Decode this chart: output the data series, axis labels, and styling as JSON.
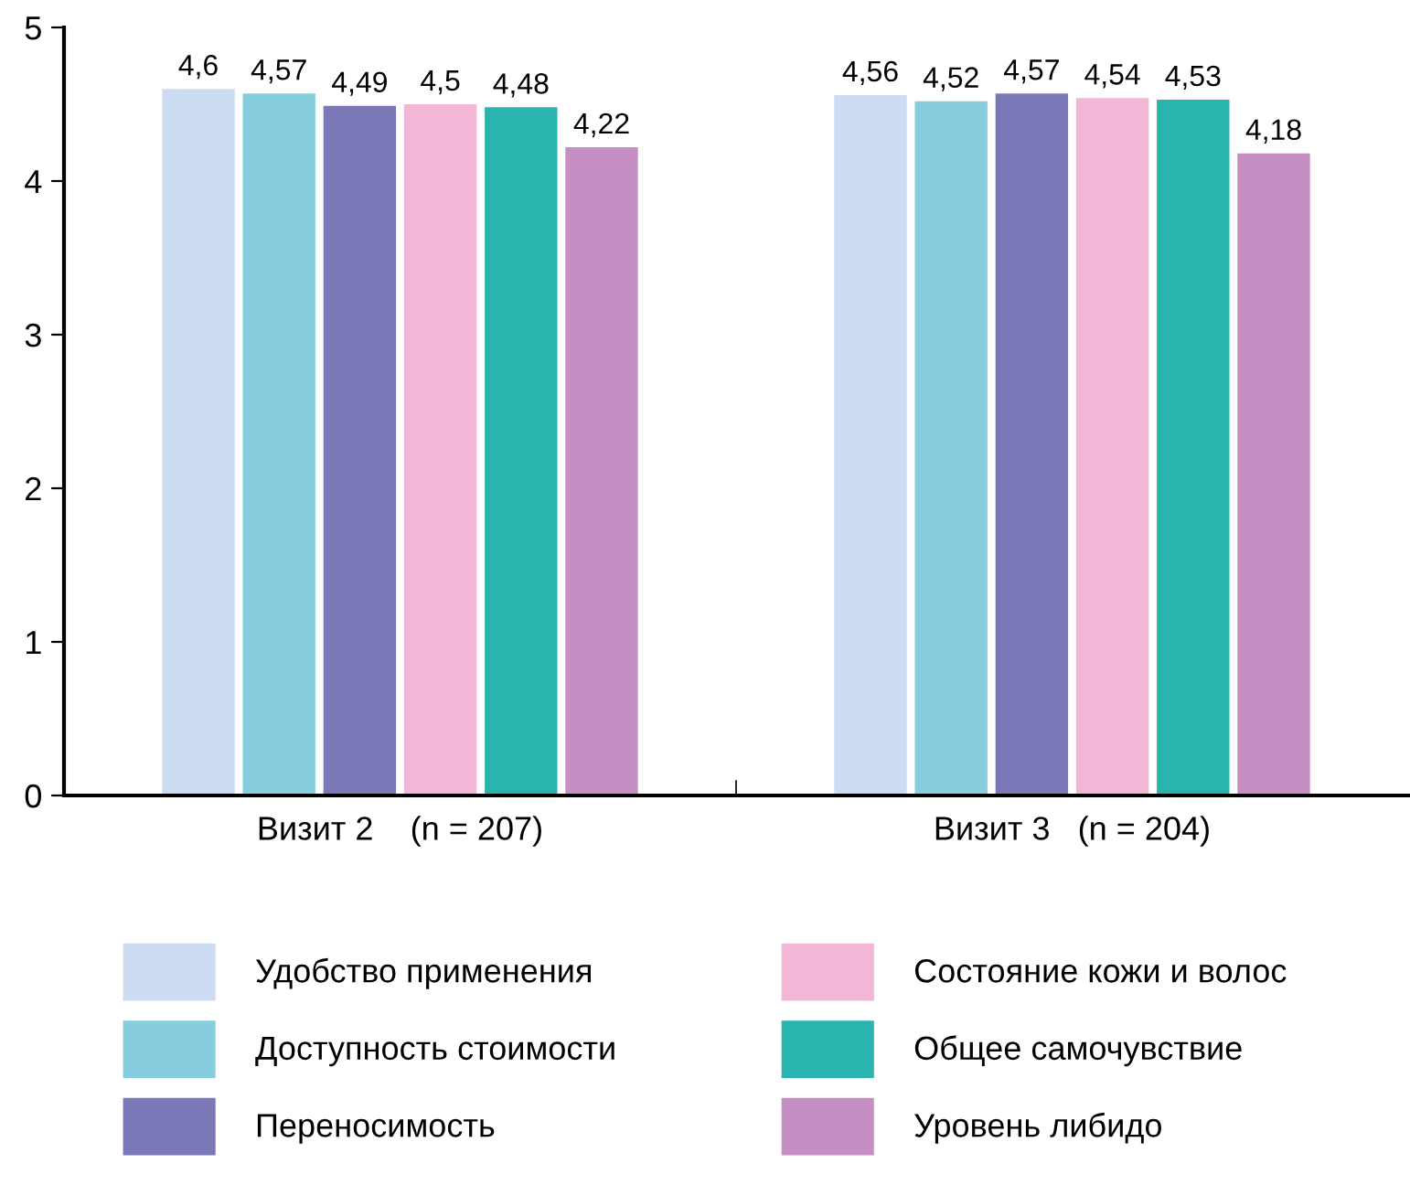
{
  "chart_data": {
    "type": "bar",
    "categories": [
      "Визит 2    (n = 207)",
      "Визит 3   (n = 204)"
    ],
    "series": [
      {
        "name": "Удобство применения",
        "color": "#ccdcf2",
        "values": [
          4.6,
          4.56
        ],
        "value_labels": [
          "4,6",
          "4,56"
        ]
      },
      {
        "name": "Доступность стоимости",
        "color": "#86cedd",
        "values": [
          4.57,
          4.52
        ],
        "value_labels": [
          "4,57",
          "4,52"
        ]
      },
      {
        "name": "Переносимость",
        "color": "#7b78b7",
        "values": [
          4.49,
          4.57
        ],
        "value_labels": [
          "4,49",
          "4,57"
        ]
      },
      {
        "name": "Состояние кожи и волос",
        "color": "#f2b6d6",
        "values": [
          4.5,
          4.54
        ],
        "value_labels": [
          "4,5",
          "4,54"
        ]
      },
      {
        "name": "Общее самочувствие",
        "color": "#2ab4b0",
        "values": [
          4.48,
          4.53
        ],
        "value_labels": [
          "4,48",
          "4,53"
        ]
      },
      {
        "name": "Уровень либидо",
        "color": "#c68fc3",
        "values": [
          4.22,
          4.18
        ],
        "value_labels": [
          "4,22",
          "4,18"
        ]
      }
    ],
    "ylim": [
      0,
      5
    ],
    "yticks": [
      0,
      1,
      2,
      3,
      4,
      5
    ],
    "grid": false,
    "legend": "bottom"
  }
}
